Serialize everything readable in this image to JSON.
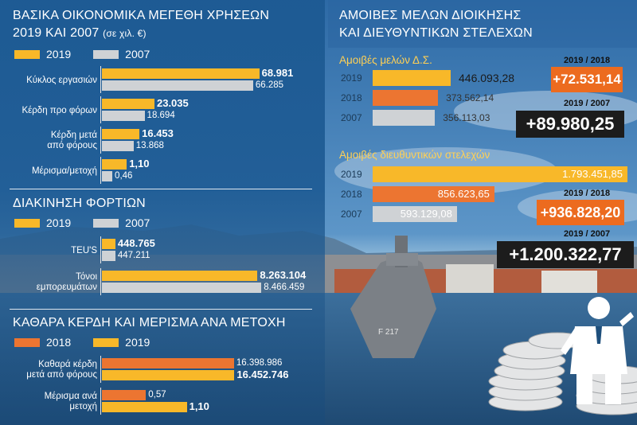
{
  "sections": {
    "financials": {
      "title_line1": "ΒΑΣΙΚΑ ΟΙΚΟΝΟΜΙΚΑ ΜΕΓΕΘΗ ΧΡΗΣΕΩΝ",
      "title_line2": "2019 ΚΑΙ 2007",
      "title_unit": "(σε χιλ. €)",
      "legend": [
        "2019",
        "2007"
      ]
    },
    "cargo": {
      "title": "ΔΙΑΚΙΝΗΣΗ ΦΟΡΤΙΩΝ",
      "legend": [
        "2019",
        "2007"
      ]
    },
    "profit_dividend": {
      "title": "ΚΑΘΑΡΑ ΚΕΡΔΗ ΚΑΙ ΜΕΡΙΣΜΑ ΑΝΑ ΜΕΤΟΧΗ",
      "legend": [
        "2018",
        "2019"
      ]
    },
    "remuneration": {
      "title_line1": "ΑΜΟΙΒΕΣ ΜΕΛΩΝ ΔΙΟΙΚΗΣΗΣ",
      "title_line2": "ΚΑΙ ΔΙΕΥΘΥΝΤΙΚΩΝ ΣΤΕΛΕΧΩΝ",
      "board_title": "Αμοιβές μελών Δ.Σ.",
      "exec_title": "Αμοιβές διευθυντικών στελεχών"
    }
  },
  "colors": {
    "yellow": "#f8b829",
    "grey": "#cfd2d5",
    "orange": "#ec7531",
    "box_orange": "#ec6b1f",
    "box_black": "#1c1c1c"
  },
  "chart_data": [
    {
      "type": "bar",
      "id": "financials",
      "categories": [
        "Κύκλος εργασιών",
        "Κέρδη προ φόρων",
        "Κέρδη μετά από φόρους",
        "Μέρισμα/μετοχή"
      ],
      "category_lines": [
        [
          "Κύκλος εργασιών"
        ],
        [
          "Κέρδη προ φόρων"
        ],
        [
          "Κέρδη μετά",
          "από φόρους"
        ],
        [
          "Μέρισμα/μετοχή"
        ]
      ],
      "series": [
        {
          "name": "2019",
          "values": [
            68981,
            23035,
            16453,
            1.1
          ],
          "labels": [
            "68.981",
            "23.035",
            "16.453",
            "1,10"
          ]
        },
        {
          "name": "2007",
          "values": [
            66285,
            18694,
            13868,
            0.46
          ],
          "labels": [
            "66.285",
            "18.694",
            "13.868",
            "0,46"
          ]
        }
      ]
    },
    {
      "type": "bar",
      "id": "cargo",
      "categories": [
        "TEU'S",
        "Τόνοι εμπορευμάτων"
      ],
      "category_lines": [
        [
          "TEU'S"
        ],
        [
          "Τόνοι",
          "εμπορευμάτων"
        ]
      ],
      "series": [
        {
          "name": "2019",
          "values": [
            448765,
            8263104
          ],
          "labels": [
            "448.765",
            "8.263.104"
          ]
        },
        {
          "name": "2007",
          "values": [
            447211,
            8466459
          ],
          "labels": [
            "447.211",
            "8.466.459"
          ]
        }
      ]
    },
    {
      "type": "bar",
      "id": "profit_dividend",
      "categories": [
        "Καθαρά κέρδη μετά από φόρους",
        "Μέρισμα ανά μετοχή"
      ],
      "category_lines": [
        [
          "Καθαρά κέρδη",
          "μετά από φόρους"
        ],
        [
          "Μέρισμα ανά",
          "μετοχή"
        ]
      ],
      "series": [
        {
          "name": "2018",
          "values": [
            16398986,
            0.57
          ],
          "labels": [
            "16.398.986",
            "0,57"
          ]
        },
        {
          "name": "2019",
          "values": [
            16452746,
            1.1
          ],
          "labels": [
            "16.452.746",
            "1,10"
          ]
        }
      ]
    },
    {
      "type": "bar",
      "id": "board_fees",
      "categories": [
        "2019",
        "2018",
        "2007"
      ],
      "values": [
        446093.28,
        373562.14,
        356113.03
      ],
      "labels": [
        "446.093,28",
        "373.562,14",
        "356.113,03"
      ],
      "changes": [
        {
          "period": "2019 / 2018",
          "value": "+72.531,14"
        },
        {
          "period": "2019 / 2007",
          "value": "+89.980,25"
        }
      ]
    },
    {
      "type": "bar",
      "id": "executive_fees",
      "categories": [
        "2019",
        "2018",
        "2007"
      ],
      "values": [
        1793451.85,
        856623.65,
        593129.08
      ],
      "labels": [
        "1.793.451,85",
        "856.623,65",
        "593.129,08"
      ],
      "changes": [
        {
          "period": "2019 / 2018",
          "value": "+936.828,20"
        },
        {
          "period": "2019 / 2007",
          "value": "+1.200.322,77"
        }
      ]
    }
  ]
}
